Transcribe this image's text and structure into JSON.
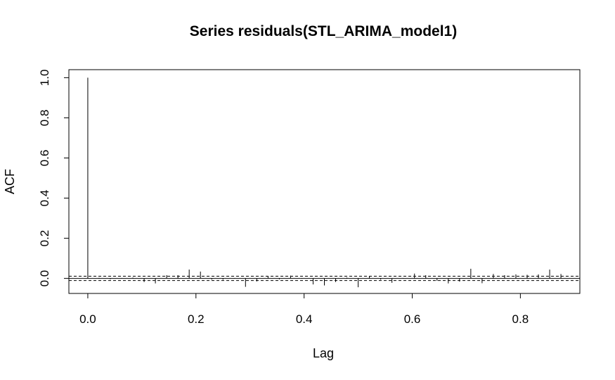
{
  "chart_data": {
    "type": "bar",
    "title": "Series  residuals(STL_ARIMA_model1)",
    "xlabel": "Lag",
    "ylabel": "ACF",
    "xlim": [
      -0.035,
      0.91
    ],
    "ylim": [
      -0.075,
      1.04
    ],
    "x_ticks": [
      "0.0",
      "0.2",
      "0.4",
      "0.6",
      "0.8"
    ],
    "x_tick_values": [
      0,
      0.2,
      0.4,
      0.6,
      0.8
    ],
    "y_ticks": [
      "0.0",
      "0.2",
      "0.4",
      "0.6",
      "0.8",
      "1.0"
    ],
    "y_tick_values": [
      0,
      0.2,
      0.4,
      0.6,
      0.8,
      1.0
    ],
    "confidence_bounds": [
      0.0107,
      -0.0107
    ],
    "grid": false,
    "lag_step": 0.0208333,
    "values": [
      1.0,
      0.003,
      -0.004,
      0.002,
      0.004,
      -0.018,
      -0.025,
      0.016,
      0.016,
      0.044,
      0.034,
      -0.006,
      -0.006,
      0.002,
      -0.042,
      -0.015,
      0.012,
      -0.005,
      0.014,
      0.002,
      -0.03,
      -0.035,
      -0.018,
      0.004,
      -0.044,
      0.012,
      -0.006,
      -0.022,
      0.002,
      0.024,
      0.016,
      -0.012,
      -0.025,
      -0.016,
      0.048,
      -0.024,
      0.022,
      0.016,
      0.02,
      0.018,
      0.02,
      0.044,
      0.022
    ]
  }
}
